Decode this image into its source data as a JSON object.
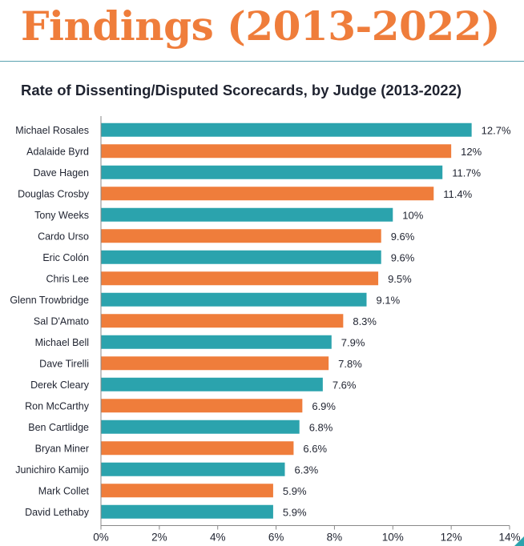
{
  "page": {
    "heading": "Findings (2013-2022)",
    "colors": {
      "heading": "#ef7d3b",
      "rule": "#5aa2b0"
    }
  },
  "chart_data": {
    "type": "bar",
    "orientation": "horizontal",
    "title": "Rate of Dissenting/Disputed Scorecards, by Judge (2013-2022)",
    "xlabel": "",
    "ylabel": "",
    "xlim": [
      0,
      14
    ],
    "x_ticks": [
      0,
      2,
      4,
      6,
      8,
      10,
      12,
      14
    ],
    "x_tick_labels": [
      "0%",
      "2%",
      "4%",
      "6%",
      "8%",
      "10%",
      "12%",
      "14%"
    ],
    "grid": false,
    "legend": "none",
    "colors": {
      "teal": "#2ba3ad",
      "orange": "#ef7d3b"
    },
    "bars": [
      {
        "category": "Michael Rosales",
        "value": 12.7,
        "label": "12.7%",
        "color": "teal"
      },
      {
        "category": "Adalaide Byrd",
        "value": 12.0,
        "label": "12%",
        "color": "orange"
      },
      {
        "category": "Dave Hagen",
        "value": 11.7,
        "label": "11.7%",
        "color": "teal"
      },
      {
        "category": "Douglas Crosby",
        "value": 11.4,
        "label": "11.4%",
        "color": "orange"
      },
      {
        "category": "Tony Weeks",
        "value": 10.0,
        "label": "10%",
        "color": "teal"
      },
      {
        "category": "Cardo Urso",
        "value": 9.6,
        "label": "9.6%",
        "color": "orange"
      },
      {
        "category": "Eric Colón",
        "value": 9.6,
        "label": "9.6%",
        "color": "teal"
      },
      {
        "category": "Chris Lee",
        "value": 9.5,
        "label": "9.5%",
        "color": "orange"
      },
      {
        "category": "Glenn Trowbridge",
        "value": 9.1,
        "label": "9.1%",
        "color": "teal"
      },
      {
        "category": "Sal D'Amato",
        "value": 8.3,
        "label": "8.3%",
        "color": "orange"
      },
      {
        "category": "Michael Bell",
        "value": 7.9,
        "label": "7.9%",
        "color": "teal"
      },
      {
        "category": "Dave Tirelli",
        "value": 7.8,
        "label": "7.8%",
        "color": "orange"
      },
      {
        "category": "Derek Cleary",
        "value": 7.6,
        "label": "7.6%",
        "color": "teal"
      },
      {
        "category": "Ron McCarthy",
        "value": 6.9,
        "label": "6.9%",
        "color": "orange"
      },
      {
        "category": "Ben Cartlidge",
        "value": 6.8,
        "label": "6.8%",
        "color": "teal"
      },
      {
        "category": "Bryan Miner",
        "value": 6.6,
        "label": "6.6%",
        "color": "orange"
      },
      {
        "category": "Junichiro Kamijo",
        "value": 6.3,
        "label": "6.3%",
        "color": "teal"
      },
      {
        "category": "Mark Collet",
        "value": 5.9,
        "label": "5.9%",
        "color": "orange"
      },
      {
        "category": "David Lethaby",
        "value": 5.9,
        "label": "5.9%",
        "color": "teal"
      }
    ]
  }
}
